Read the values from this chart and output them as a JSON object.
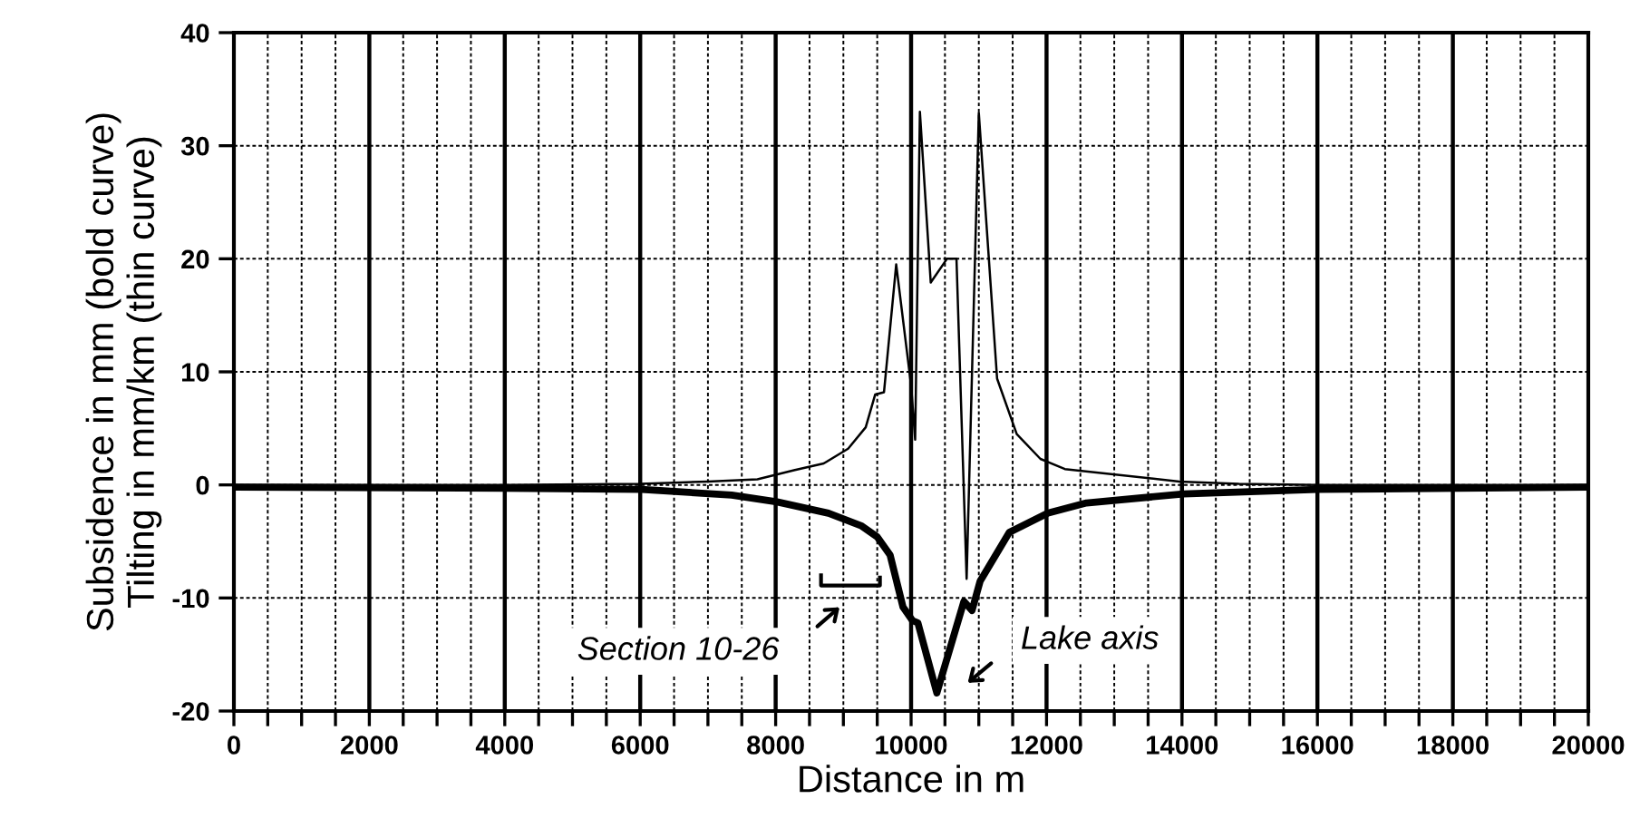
{
  "chart_data": {
    "type": "line",
    "xlabel": "Distance in m",
    "ylabel": "Subsidence in mm (bold curve)\nTilting in mm/km (thin curve)",
    "xlim": [
      0,
      20000
    ],
    "ylim": [
      -20,
      40
    ],
    "xticks": [
      0,
      {
        "value": 500,
        "label": null
      },
      {
        "value": 1000,
        "label": null
      },
      {
        "value": 1500,
        "label": null
      },
      2000,
      {
        "value": 2500,
        "label": null
      },
      {
        "value": 3000,
        "label": null
      },
      {
        "value": 3500,
        "label": null
      },
      4000,
      {
        "value": 4500,
        "label": null
      },
      {
        "value": 5000,
        "label": null
      },
      {
        "value": 5500,
        "label": null
      },
      6000,
      {
        "value": 6500,
        "label": null
      },
      {
        "value": 7000,
        "label": null
      },
      {
        "value": 7500,
        "label": null
      },
      8000,
      {
        "value": 8500,
        "label": null
      },
      {
        "value": 9000,
        "label": null
      },
      {
        "value": 9500,
        "label": null
      },
      10000,
      {
        "value": 10500,
        "label": null
      },
      {
        "value": 11000,
        "label": null
      },
      {
        "value": 11500,
        "label": null
      },
      12000,
      {
        "value": 12500,
        "label": null
      },
      {
        "value": 13000,
        "label": null
      },
      {
        "value": 13500,
        "label": null
      },
      14000,
      {
        "value": 14500,
        "label": null
      },
      {
        "value": 15000,
        "label": null
      },
      {
        "value": 15500,
        "label": null
      },
      16000,
      {
        "value": 16500,
        "label": null
      },
      {
        "value": 17000,
        "label": null
      },
      {
        "value": 17500,
        "label": null
      },
      18000,
      {
        "value": 18500,
        "label": null
      },
      {
        "value": 19000,
        "label": null
      },
      {
        "value": 19500,
        "label": null
      },
      20000
    ],
    "yticks": [
      -20,
      -10,
      0,
      10,
      20,
      30,
      40
    ],
    "grid": true,
    "legend": false,
    "marker": "none",
    "line_style": "solid",
    "series": [
      {
        "color": "#000000",
        "x": [
          0,
          4000,
          6000,
          6500,
          7000,
          7730,
          8270,
          8710,
          9070,
          9330,
          9470,
          9600,
          9780,
          10000,
          10060,
          10130,
          10290,
          10530,
          10670,
          10820,
          11000,
          11270,
          11560,
          11910,
          12270,
          13960,
          14840,
          16000,
          20000
        ],
        "values": [
          0,
          0,
          0.1,
          0.2,
          0.3,
          0.5,
          1.3,
          1.9,
          3.2,
          5.1,
          8,
          8.2,
          19.5,
          8.8,
          4,
          33,
          17.9,
          20,
          20,
          -8.3,
          32.9,
          9.4,
          4.5,
          2.3,
          1.4,
          0.3,
          0.1,
          0,
          0
        ]
      },
      {
        "color": "#000000",
        "x": [
          0,
          4000,
          6020,
          7350,
          8020,
          8780,
          9260,
          9500,
          9690,
          9880,
          10020,
          10100,
          10380,
          10780,
          10900,
          11020,
          11450,
          12020,
          12590,
          14020,
          16000,
          20000
        ],
        "values": [
          -0.2,
          -0.3,
          -0.4,
          -0.9,
          -1.5,
          -2.5,
          -3.6,
          -4.6,
          -6.2,
          -10.8,
          -12,
          -12.2,
          -18.4,
          -10.3,
          -11.1,
          -8.5,
          -4.2,
          -2.5,
          -1.6,
          -0.8,
          -0.4,
          -0.2
        ]
      }
    ],
    "annotations": [
      "Section 10-26",
      "Lake axis"
    ]
  }
}
